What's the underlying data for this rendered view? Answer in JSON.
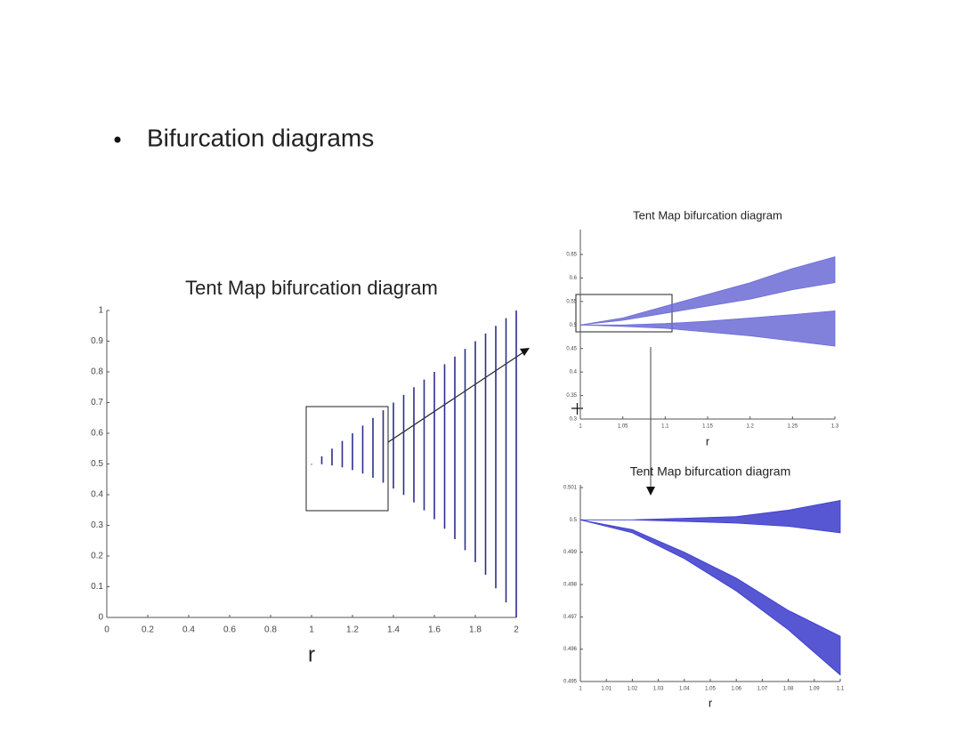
{
  "slide": {
    "bullet": "Bifurcation diagrams"
  },
  "chart_data": [
    {
      "type": "band",
      "title": "Tent Map bifurcation diagram",
      "x_label": "r",
      "xlim": [
        0,
        2
      ],
      "xticks": [
        0,
        0.2,
        0.4,
        0.6,
        0.8,
        1,
        1.2,
        1.4,
        1.6,
        1.8,
        2
      ],
      "ylim": [
        0,
        1
      ],
      "yticks": [
        0,
        0.1,
        0.2,
        0.3,
        0.4,
        0.5,
        0.6,
        0.7,
        0.8,
        0.9,
        1
      ],
      "series": [
        {
          "color": "#2e2e8f",
          "x": [
            1,
            1.05,
            1.1,
            1.15,
            1.2,
            1.25,
            1.3,
            1.35,
            1.4,
            1.45,
            1.5,
            1.55,
            1.6,
            1.65,
            1.7,
            1.75,
            1.8,
            1.85,
            1.9,
            1.95,
            2
          ],
          "low": [
            0.5,
            0.499,
            0.495,
            0.489,
            0.48,
            0.469,
            0.455,
            0.439,
            0.42,
            0.399,
            0.375,
            0.349,
            0.32,
            0.289,
            0.255,
            0.219,
            0.18,
            0.139,
            0.095,
            0.049,
            0
          ],
          "high": [
            0.5,
            0.525,
            0.55,
            0.575,
            0.6,
            0.625,
            0.65,
            0.675,
            0.7,
            0.725,
            0.75,
            0.775,
            0.8,
            0.825,
            0.85,
            0.875,
            0.9,
            0.925,
            0.95,
            0.975,
            1
          ]
        }
      ]
    },
    {
      "type": "area",
      "title": "Tent Map bifurcation diagram",
      "x_label": "r",
      "xlim": [
        1,
        1.3
      ],
      "xticks": [
        1,
        1.05,
        1.1,
        1.15,
        1.2,
        1.25,
        1.3
      ],
      "ylim": [
        0.3,
        0.65
      ],
      "yticks": [
        0.3,
        0.35,
        0.4,
        0.45,
        0.5,
        0.55,
        0.6,
        0.65
      ],
      "series": [
        {
          "color": "#6b6bd6",
          "x": [
            1,
            1.05,
            1.1,
            1.15,
            1.2,
            1.25,
            1.3
          ],
          "low": [
            0.5,
            0.51,
            0.525,
            0.54,
            0.555,
            0.575,
            0.59
          ],
          "high": [
            0.5,
            0.515,
            0.54,
            0.565,
            0.59,
            0.62,
            0.645
          ]
        },
        {
          "color": "#6b6bd6",
          "x": [
            1,
            1.05,
            1.1,
            1.15,
            1.2,
            1.25,
            1.3
          ],
          "low": [
            0.5,
            0.497,
            0.493,
            0.485,
            0.477,
            0.466,
            0.455
          ],
          "high": [
            0.5,
            0.5,
            0.503,
            0.508,
            0.515,
            0.522,
            0.53
          ]
        }
      ]
    },
    {
      "type": "area",
      "title": "Tent Map bifurcation diagram",
      "x_label": "r",
      "xlim": [
        1,
        1.1
      ],
      "xticks": [
        1,
        1.01,
        1.02,
        1.03,
        1.04,
        1.05,
        1.06,
        1.07,
        1.08,
        1.09,
        1.1
      ],
      "ylim": [
        0.495,
        0.501
      ],
      "yticks": [
        0.495,
        0.496,
        0.497,
        0.498,
        0.499,
        0.5,
        0.501
      ],
      "series": [
        {
          "color": "#3a3acc",
          "x": [
            1,
            1.02,
            1.04,
            1.06,
            1.08,
            1.1
          ],
          "low": [
            0.5,
            0.5,
            0.49995,
            0.4999,
            0.4998,
            0.4996
          ],
          "high": [
            0.5,
            0.5,
            0.50005,
            0.5001,
            0.5003,
            0.5006
          ]
        },
        {
          "color": "#3a3acc",
          "x": [
            1,
            1.02,
            1.04,
            1.06,
            1.08,
            1.1
          ],
          "low": [
            0.5,
            0.4996,
            0.4988,
            0.4978,
            0.4966,
            0.4952
          ],
          "high": [
            0.5,
            0.4997,
            0.499,
            0.4982,
            0.4972,
            0.4964
          ]
        }
      ]
    }
  ]
}
